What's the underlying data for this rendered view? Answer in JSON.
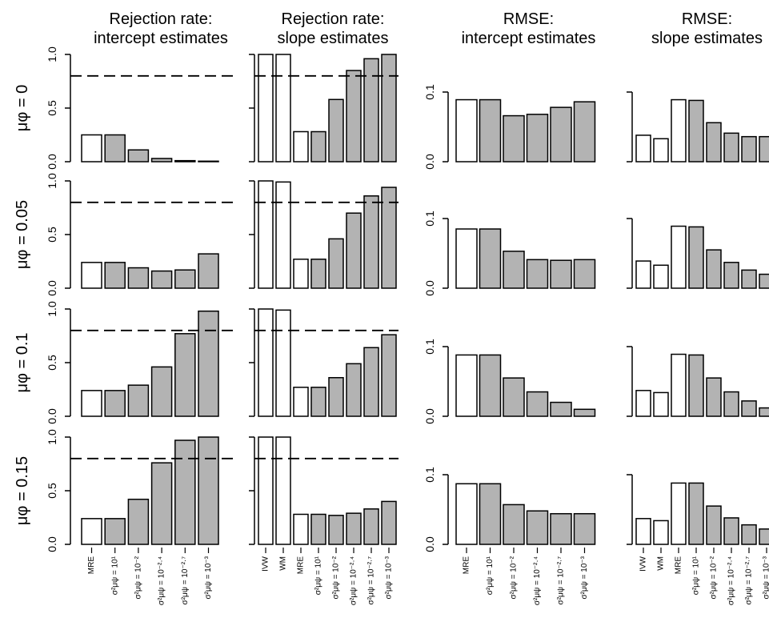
{
  "chart_data": [
    {
      "type": "bar",
      "title": [
        "Rejection rate:",
        "intercept estimates"
      ],
      "ylabel": "μφ = 0",
      "values": [
        0.25,
        0.25,
        0.11,
        0.03,
        0.01,
        0.005
      ],
      "colors": [
        "#ffffff",
        "#b3b3b3",
        "#b3b3b3",
        "#b3b3b3",
        "#b3b3b3",
        "#b3b3b3"
      ],
      "ylim": [
        0,
        1
      ],
      "yticks": [
        {
          "value": 0,
          "label": "0.0"
        },
        {
          "value": 0.5,
          "label": "0.5"
        },
        {
          "value": 1,
          "label": "1.0"
        }
      ],
      "reference_line": 0.8
    },
    {
      "type": "bar",
      "title": [
        "Rejection rate:",
        "slope estimates"
      ],
      "values": [
        1.0,
        1.0,
        0.28,
        0.28,
        0.58,
        0.85,
        0.96,
        1.0
      ],
      "colors": [
        "#ffffff",
        "#ffffff",
        "#ffffff",
        "#b3b3b3",
        "#b3b3b3",
        "#b3b3b3",
        "#b3b3b3",
        "#b3b3b3"
      ],
      "ylim": [
        0,
        1
      ],
      "yticks": [
        0,
        0.5,
        1
      ],
      "tick_labels": false,
      "reference_line": 0.8
    },
    {
      "type": "bar",
      "title": [
        "RMSE:",
        "intercept estimates"
      ],
      "values": [
        0.089,
        0.089,
        0.066,
        0.068,
        0.078,
        0.086
      ],
      "colors": [
        "#ffffff",
        "#b3b3b3",
        "#b3b3b3",
        "#b3b3b3",
        "#b3b3b3",
        "#b3b3b3"
      ],
      "ylim": [
        0,
        0.154
      ],
      "yticks": [
        {
          "value": 0,
          "label": "0.0"
        },
        0.1
      ]
    },
    {
      "type": "bar",
      "title": [
        "RMSE:",
        "slope estimates"
      ],
      "values": [
        0.038,
        0.033,
        0.089,
        0.088,
        0.056,
        0.041,
        0.036,
        0.036
      ],
      "colors": [
        "#ffffff",
        "#ffffff",
        "#ffffff",
        "#b3b3b3",
        "#b3b3b3",
        "#b3b3b3",
        "#b3b3b3",
        "#b3b3b3"
      ],
      "ylim": [
        0,
        0.154
      ],
      "yticks": [
        0,
        0.1
      ],
      "tick_labels": false
    },
    {
      "type": "bar",
      "ylabel": "μφ = 0.05",
      "values": [
        0.24,
        0.24,
        0.19,
        0.16,
        0.17,
        0.32
      ],
      "colors": [
        "#ffffff",
        "#b3b3b3",
        "#b3b3b3",
        "#b3b3b3",
        "#b3b3b3",
        "#b3b3b3"
      ],
      "ylim": [
        0,
        1
      ],
      "yticks": [
        {
          "value": 0,
          "label": "0.0"
        },
        {
          "value": 0.5,
          "label": "0.5"
        },
        {
          "value": 1,
          "label": "1.0"
        }
      ],
      "reference_line": 0.8
    },
    {
      "type": "bar",
      "values": [
        1.0,
        0.99,
        0.27,
        0.27,
        0.46,
        0.7,
        0.86,
        0.94
      ],
      "colors": [
        "#ffffff",
        "#ffffff",
        "#ffffff",
        "#b3b3b3",
        "#b3b3b3",
        "#b3b3b3",
        "#b3b3b3",
        "#b3b3b3"
      ],
      "ylim": [
        0,
        1
      ],
      "yticks": [
        0,
        0.5,
        1
      ],
      "tick_labels": false,
      "reference_line": 0.8
    },
    {
      "type": "bar",
      "values": [
        0.085,
        0.085,
        0.053,
        0.041,
        0.04,
        0.041
      ],
      "colors": [
        "#ffffff",
        "#b3b3b3",
        "#b3b3b3",
        "#b3b3b3",
        "#b3b3b3",
        "#b3b3b3"
      ],
      "ylim": [
        0,
        0.154
      ],
      "yticks": [
        {
          "value": 0,
          "label": "0.0"
        },
        0.1
      ]
    },
    {
      "type": "bar",
      "values": [
        0.039,
        0.033,
        0.089,
        0.088,
        0.055,
        0.037,
        0.026,
        0.02
      ],
      "colors": [
        "#ffffff",
        "#ffffff",
        "#ffffff",
        "#b3b3b3",
        "#b3b3b3",
        "#b3b3b3",
        "#b3b3b3",
        "#b3b3b3"
      ],
      "ylim": [
        0,
        0.154
      ],
      "yticks": [
        0,
        0.1
      ],
      "tick_labels": false
    },
    {
      "type": "bar",
      "ylabel": "μφ = 0.1",
      "values": [
        0.24,
        0.24,
        0.29,
        0.46,
        0.77,
        0.98
      ],
      "colors": [
        "#ffffff",
        "#b3b3b3",
        "#b3b3b3",
        "#b3b3b3",
        "#b3b3b3",
        "#b3b3b3"
      ],
      "ylim": [
        0,
        1
      ],
      "yticks": [
        {
          "value": 0,
          "label": "0.0"
        },
        {
          "value": 0.5,
          "label": "0.5"
        },
        {
          "value": 1,
          "label": "1.0"
        }
      ],
      "reference_line": 0.8
    },
    {
      "type": "bar",
      "values": [
        1.0,
        0.99,
        0.27,
        0.27,
        0.36,
        0.49,
        0.64,
        0.76
      ],
      "colors": [
        "#ffffff",
        "#ffffff",
        "#ffffff",
        "#b3b3b3",
        "#b3b3b3",
        "#b3b3b3",
        "#b3b3b3",
        "#b3b3b3"
      ],
      "ylim": [
        0,
        1
      ],
      "yticks": [
        0,
        0.5,
        1
      ],
      "tick_labels": false,
      "reference_line": 0.8
    },
    {
      "type": "bar",
      "values": [
        0.088,
        0.088,
        0.055,
        0.035,
        0.02,
        0.01
      ],
      "colors": [
        "#ffffff",
        "#b3b3b3",
        "#b3b3b3",
        "#b3b3b3",
        "#b3b3b3",
        "#b3b3b3"
      ],
      "ylim": [
        0,
        0.154
      ],
      "yticks": [
        {
          "value": 0,
          "label": "0.0"
        },
        0.1
      ]
    },
    {
      "type": "bar",
      "values": [
        0.037,
        0.034,
        0.089,
        0.088,
        0.055,
        0.035,
        0.022,
        0.012
      ],
      "colors": [
        "#ffffff",
        "#ffffff",
        "#ffffff",
        "#b3b3b3",
        "#b3b3b3",
        "#b3b3b3",
        "#b3b3b3",
        "#b3b3b3"
      ],
      "ylim": [
        0,
        0.154
      ],
      "yticks": [
        0,
        0.1
      ],
      "tick_labels": false
    },
    {
      "type": "bar",
      "ylabel": "μφ = 0.15",
      "categories": [
        "MRE",
        "σ²μψ = 10¹",
        "σ²μψ = 10⁻²",
        "σ²μψ = 10⁻²·⁴",
        "σ²μψ = 10⁻²·⁷",
        "σ²μψ = 10⁻³"
      ],
      "values": [
        0.24,
        0.24,
        0.42,
        0.76,
        0.97,
        1.0
      ],
      "colors": [
        "#ffffff",
        "#b3b3b3",
        "#b3b3b3",
        "#b3b3b3",
        "#b3b3b3",
        "#b3b3b3"
      ],
      "ylim": [
        0,
        1
      ],
      "yticks": [
        {
          "value": 0,
          "label": "0.0"
        },
        {
          "value": 0.5,
          "label": "0.5"
        },
        {
          "value": 1,
          "label": "1.0"
        }
      ],
      "reference_line": 0.8
    },
    {
      "type": "bar",
      "categories": [
        "IVW",
        "WM",
        "MRE",
        "σ²μψ = 10¹",
        "σ²μψ = 10⁻²",
        "σ²μψ = 10⁻²·⁴",
        "σ²μψ = 10⁻²·⁷",
        "σ²μψ = 10⁻³"
      ],
      "values": [
        1.0,
        1.0,
        0.28,
        0.28,
        0.27,
        0.29,
        0.33,
        0.4
      ],
      "colors": [
        "#ffffff",
        "#ffffff",
        "#ffffff",
        "#b3b3b3",
        "#b3b3b3",
        "#b3b3b3",
        "#b3b3b3",
        "#b3b3b3"
      ],
      "ylim": [
        0,
        1
      ],
      "yticks": [
        0,
        0.5,
        1
      ],
      "tick_labels": false,
      "reference_line": 0.8
    },
    {
      "type": "bar",
      "categories": [
        "MRE",
        "σ²μψ = 10¹",
        "σ²μψ = 10⁻²",
        "σ²μψ = 10⁻²·⁴",
        "σ²μψ = 10⁻²·⁷",
        "σ²μψ = 10⁻³"
      ],
      "values": [
        0.087,
        0.087,
        0.057,
        0.048,
        0.044,
        0.044
      ],
      "colors": [
        "#ffffff",
        "#b3b3b3",
        "#b3b3b3",
        "#b3b3b3",
        "#b3b3b3",
        "#b3b3b3"
      ],
      "ylim": [
        0,
        0.154
      ],
      "yticks": [
        {
          "value": 0,
          "label": "0.0"
        },
        0.1
      ]
    },
    {
      "type": "bar",
      "categories": [
        "IVW",
        "WM",
        "MRE",
        "σ²μψ = 10¹",
        "σ²μψ = 10⁻²",
        "σ²μψ = 10⁻²·⁴",
        "σ²μψ = 10⁻²·⁷",
        "σ²μψ = 10⁻³"
      ],
      "values": [
        0.037,
        0.034,
        0.088,
        0.088,
        0.055,
        0.038,
        0.028,
        0.022
      ],
      "colors": [
        "#ffffff",
        "#ffffff",
        "#ffffff",
        "#b3b3b3",
        "#b3b3b3",
        "#b3b3b3",
        "#b3b3b3",
        "#b3b3b3"
      ],
      "ylim": [
        0,
        0.154
      ],
      "yticks": [
        0,
        0.1
      ],
      "tick_labels": false
    }
  ]
}
